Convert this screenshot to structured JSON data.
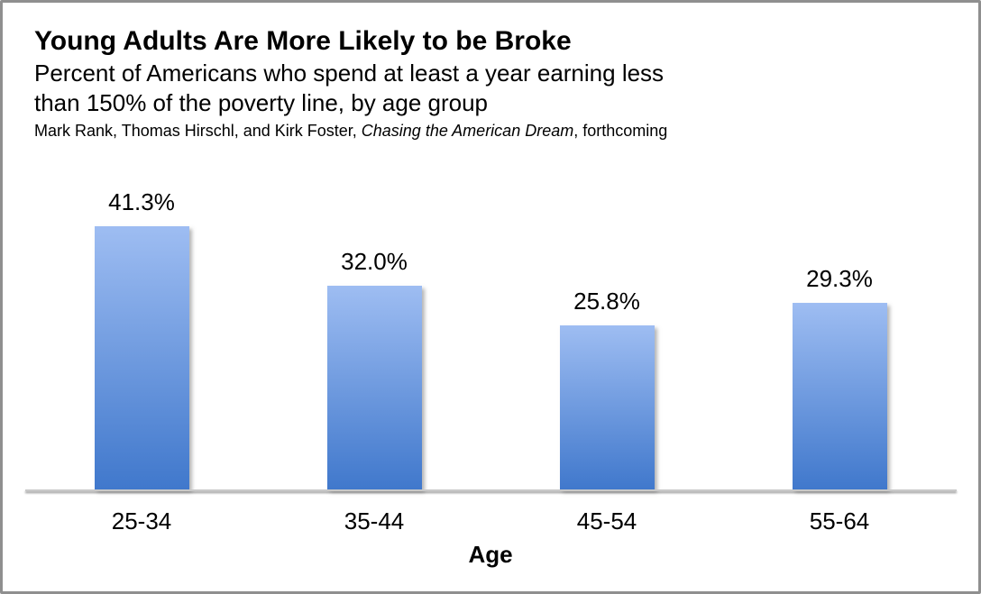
{
  "window": {
    "background": "#ffffff",
    "border_color": "#8f8f8f"
  },
  "chart_data": {
    "type": "bar",
    "title": "Young Adults Are More Likely to be Broke",
    "subtitle_lines": [
      "Percent of Americans who spend at least a year earning less",
      "than 150% of the poverty line, by age group"
    ],
    "source": {
      "prefix": "Mark Rank, Thomas Hirschl, and Kirk Foster, ",
      "italic": "Chasing the American Dream",
      "suffix": ", forthcoming"
    },
    "categories": [
      "25-34",
      "35-44",
      "45-54",
      "55-64"
    ],
    "values": [
      41.3,
      32.0,
      25.8,
      29.3
    ],
    "value_labels": [
      "41.3%",
      "32.0%",
      "25.8%",
      "29.3%"
    ],
    "xlabel": "Age",
    "ylabel": "",
    "ylim": [
      0,
      45
    ],
    "grid": false,
    "legend": "none",
    "colors": {
      "bar_gradient_top": "#9ebdf2",
      "bar_gradient_bottom": "#4078cc",
      "axis_line": "#c8c8c8",
      "text": "#000000"
    }
  }
}
